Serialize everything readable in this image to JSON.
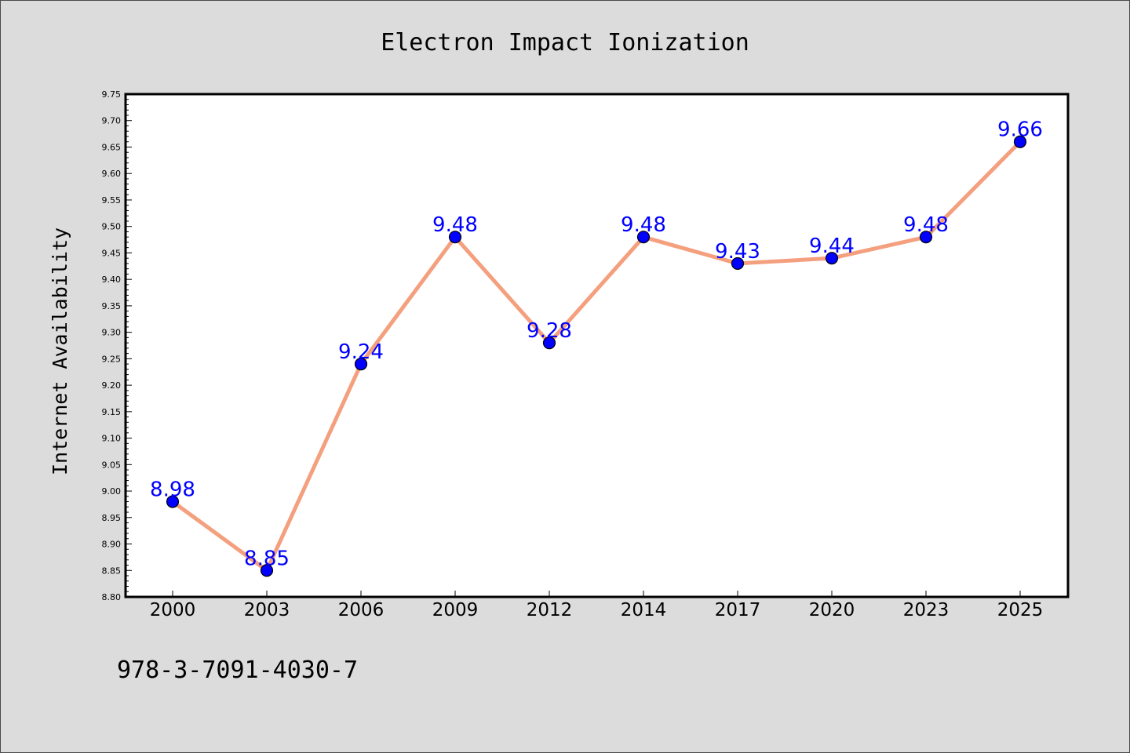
{
  "chart_data": {
    "type": "line",
    "title": "Electron Impact Ionization",
    "xlabel": "",
    "ylabel": "Internet Availability",
    "categories": [
      "2000",
      "2003",
      "2006",
      "2009",
      "2012",
      "2014",
      "2017",
      "2020",
      "2023",
      "2025"
    ],
    "series": [
      {
        "values": [
          8.98,
          8.85,
          9.24,
          9.48,
          9.28,
          9.48,
          9.43,
          9.44,
          9.48,
          9.66
        ],
        "line_color": "#f4a07e",
        "marker_color": "#0000ff"
      }
    ],
    "data_labels": [
      "8.98",
      "8.85",
      "9.24",
      "9.48",
      "9.28",
      "9.48",
      "9.43",
      "9.44",
      "9.48",
      "9.66"
    ],
    "ylim": [
      8.8,
      9.75
    ],
    "yticks": [
      "8.80",
      "8.85",
      "8.90",
      "8.95",
      "9.00",
      "9.05",
      "9.10",
      "9.15",
      "9.20",
      "9.25",
      "9.30",
      "9.35",
      "9.40",
      "9.45",
      "9.50",
      "9.55",
      "9.60",
      "9.65",
      "9.70",
      "9.75"
    ],
    "grid": false,
    "legend": "none",
    "background_color": "#dcdcdc",
    "plot_background": "#ffffff",
    "label_color": "#0000ff"
  },
  "footer": {
    "isbn": "978-3-7091-4030-7"
  }
}
